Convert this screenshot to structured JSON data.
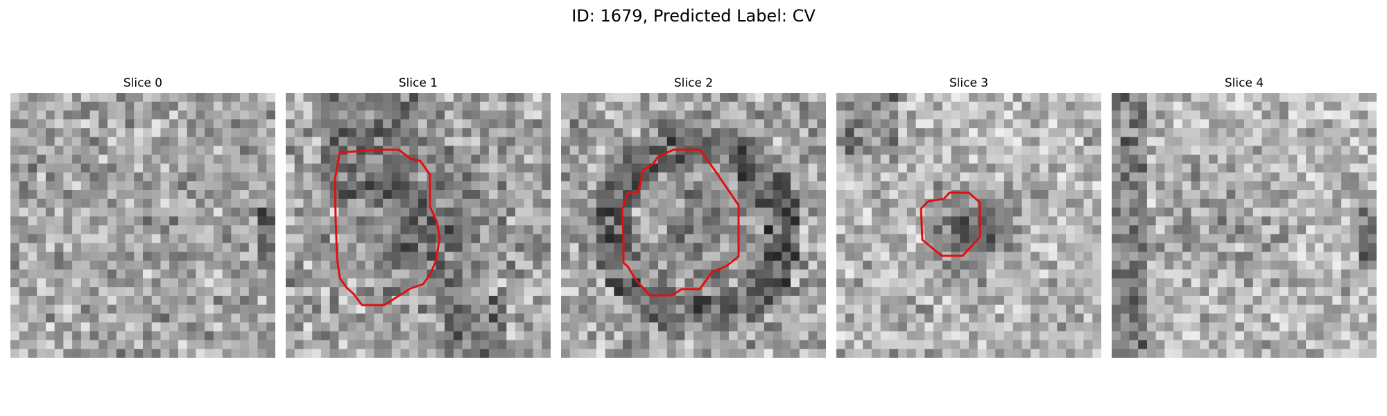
{
  "figure": {
    "title": "ID: 1679, Predicted Label: CV"
  },
  "slices": [
    {
      "label": "Slice 0",
      "description": "Grayscale noise patch without contour",
      "contour_color": ""
    },
    {
      "label": "Slice 1",
      "description": "Grayscale noise patch with outlined region",
      "contour_color": "#e01010"
    },
    {
      "label": "Slice 2",
      "description": "Grayscale noise patch with outlined region",
      "contour_color": "#e01010"
    },
    {
      "label": "Slice 3",
      "description": "Grayscale noise patch with outlined region",
      "contour_color": "#e01010"
    },
    {
      "label": "Slice 4",
      "description": "Grayscale noise patch without contour",
      "contour_color": ""
    }
  ]
}
